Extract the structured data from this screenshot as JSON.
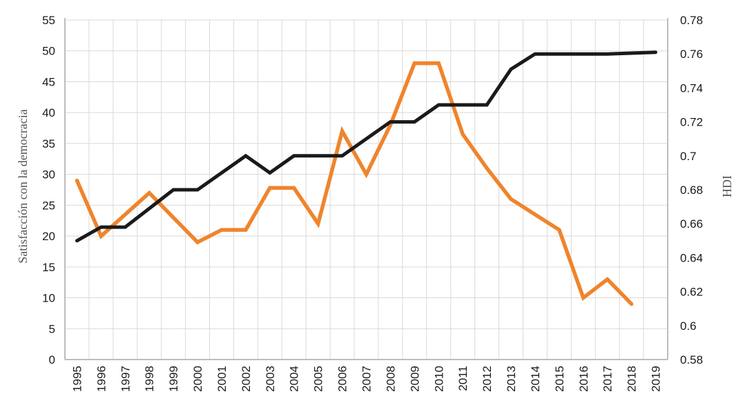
{
  "chart_data": {
    "type": "line",
    "x": [
      "1995",
      "1996",
      "1997",
      "1998",
      "1999",
      "2000",
      "2001",
      "2002",
      "2003",
      "2004",
      "2005",
      "2006",
      "2007",
      "2008",
      "2009",
      "2010",
      "2011",
      "2012",
      "2013",
      "2014",
      "2015",
      "2016",
      "2017",
      "2018",
      "2019"
    ],
    "left_axis": {
      "label": "Satisfacción con la democracia",
      "range": [
        0,
        55
      ],
      "ticks": [
        0,
        5,
        10,
        15,
        20,
        25,
        30,
        35,
        40,
        45,
        50,
        55
      ]
    },
    "right_axis": {
      "label": "HDI",
      "range": [
        0.58,
        0.78
      ],
      "ticks": [
        "0.58",
        "0.6",
        "0.62",
        "0.64",
        "0.66",
        "0.68",
        "0.7",
        "0.72",
        "0.74",
        "0.76",
        "0.78"
      ]
    },
    "series": [
      {
        "name": "Satisfacción con la democracia",
        "axis": "left",
        "color": "#f0842c",
        "values": [
          29,
          20,
          23.5,
          27,
          23,
          19,
          21,
          21,
          27.8,
          27.8,
          22,
          37,
          30,
          38,
          48,
          48,
          36.5,
          31,
          26,
          23.5,
          21,
          10,
          13,
          9,
          null
        ]
      },
      {
        "name": "HDI",
        "axis": "right",
        "color": "#1a1a1a",
        "values": [
          0.65,
          0.658,
          0.658,
          0.669,
          0.68,
          0.68,
          0.69,
          0.7,
          0.69,
          0.7,
          0.7,
          0.7,
          0.71,
          0.72,
          0.72,
          0.73,
          0.73,
          0.73,
          0.751,
          0.76,
          0.76,
          0.76,
          0.76,
          0.7605,
          0.761
        ]
      }
    ],
    "grid": true
  }
}
